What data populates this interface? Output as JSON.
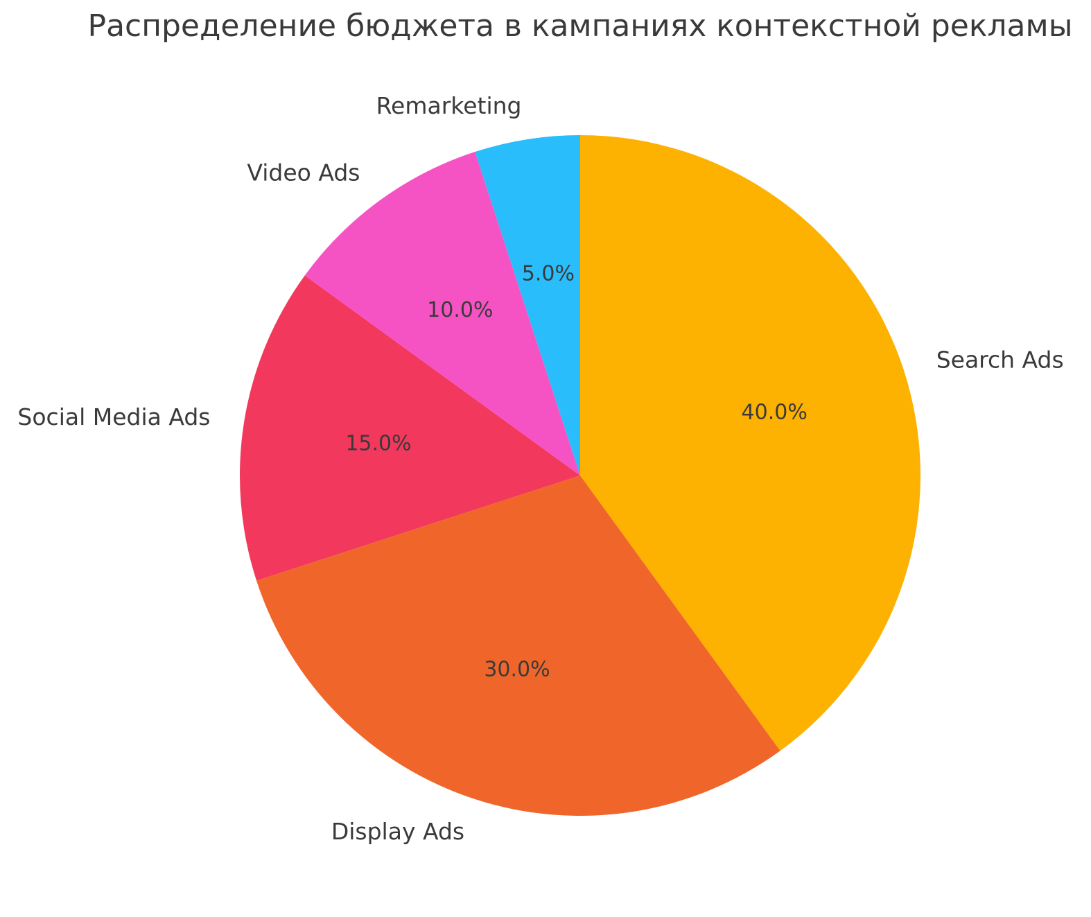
{
  "title": "Распределение бюджета в кампаниях контекстной рекламы",
  "text_color": "#3a3a3a",
  "background_color": "#ffffff",
  "chart_data": {
    "type": "pie",
    "title": "Распределение бюджета в кампаниях контекстной рекламы",
    "labels": [
      "Search Ads",
      "Display Ads",
      "Social Media Ads",
      "Video Ads",
      "Remarketing"
    ],
    "values": [
      40.0,
      30.0,
      15.0,
      10.0,
      5.0
    ],
    "percent_labels": [
      "40.0%",
      "30.0%",
      "15.0%",
      "10.0%",
      "5.0%"
    ],
    "colors": [
      "#FDB101",
      "#F0662A",
      "#F2385C",
      "#F553C4",
      "#29BDFB"
    ],
    "start_angle_deg": 90,
    "direction": "clockwise",
    "label_distance": 1.1,
    "pct_distance": 0.6,
    "legend": "none",
    "grid": false
  }
}
